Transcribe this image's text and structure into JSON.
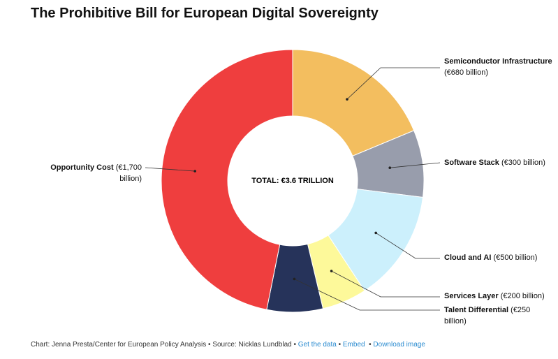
{
  "chart_data": {
    "type": "pie",
    "title": "The Prohibitive Bill for European Digital Sovereignty",
    "center_label": "TOTAL: €3.6 TRILLION",
    "categories": [
      "Semiconductor Infrastructure",
      "Software Stack",
      "Cloud and AI",
      "Services Layer",
      "Talent Differential",
      "Opportunity Cost"
    ],
    "values": [
      680,
      300,
      500,
      200,
      250,
      1700
    ],
    "value_labels": [
      "(€680 billion)",
      "(€300 billion)",
      "(€500 billion)",
      "(€200 billion)",
      "(€250 billion)",
      "(€1,700 billion)"
    ],
    "colors": [
      "#f3be5f",
      "#989dac",
      "#ccf0fc",
      "#fdf99a",
      "#26335a",
      "#ef3e3e"
    ]
  },
  "footer": {
    "credit": "Chart: Jenna Presta/Center for European Policy Analysis",
    "source": "Source: Nicklas Lundblad",
    "links": [
      "Get the data",
      "Embed",
      "Download image"
    ]
  }
}
